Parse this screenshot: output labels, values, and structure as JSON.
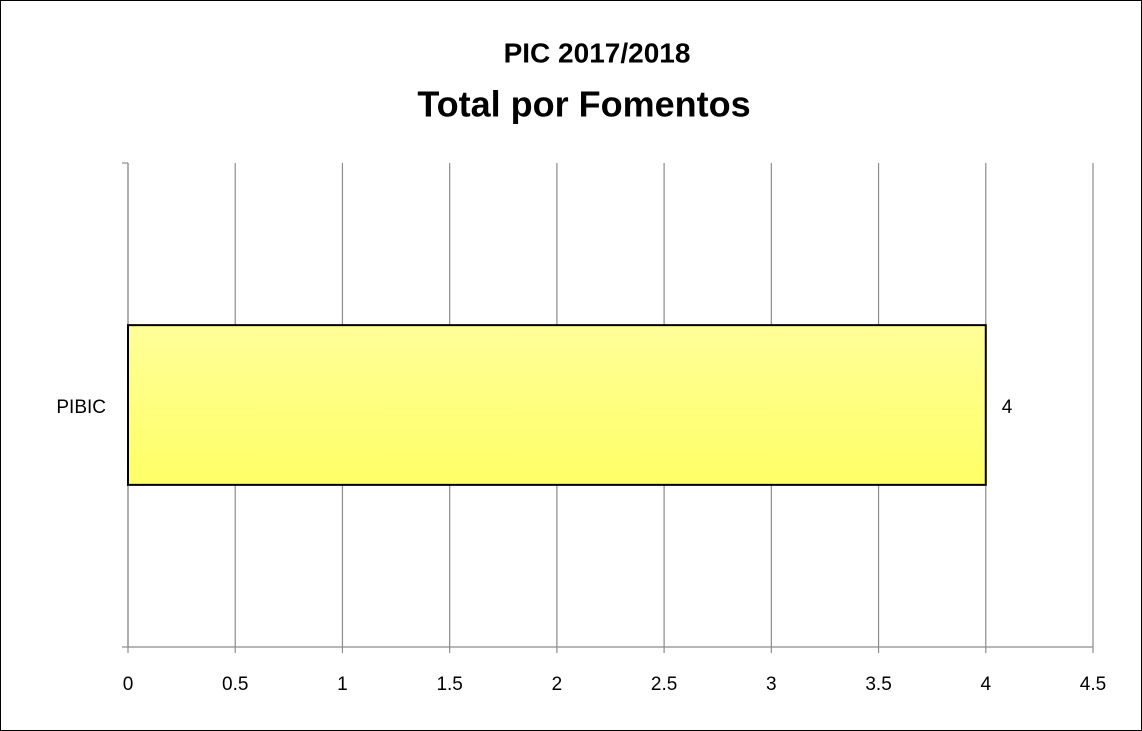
{
  "chart_data": {
    "type": "bar",
    "orientation": "horizontal",
    "title": "PIC 2017/2018",
    "subtitle": "Total por Fomentos",
    "categories": [
      "PIBIC"
    ],
    "values": [
      4
    ],
    "color": "#ffff80",
    "xlim": [
      0,
      4.5
    ],
    "xticks": [
      0,
      0.5,
      1,
      1.5,
      2,
      2.5,
      3,
      3.5,
      4,
      4.5
    ],
    "grid": true
  }
}
